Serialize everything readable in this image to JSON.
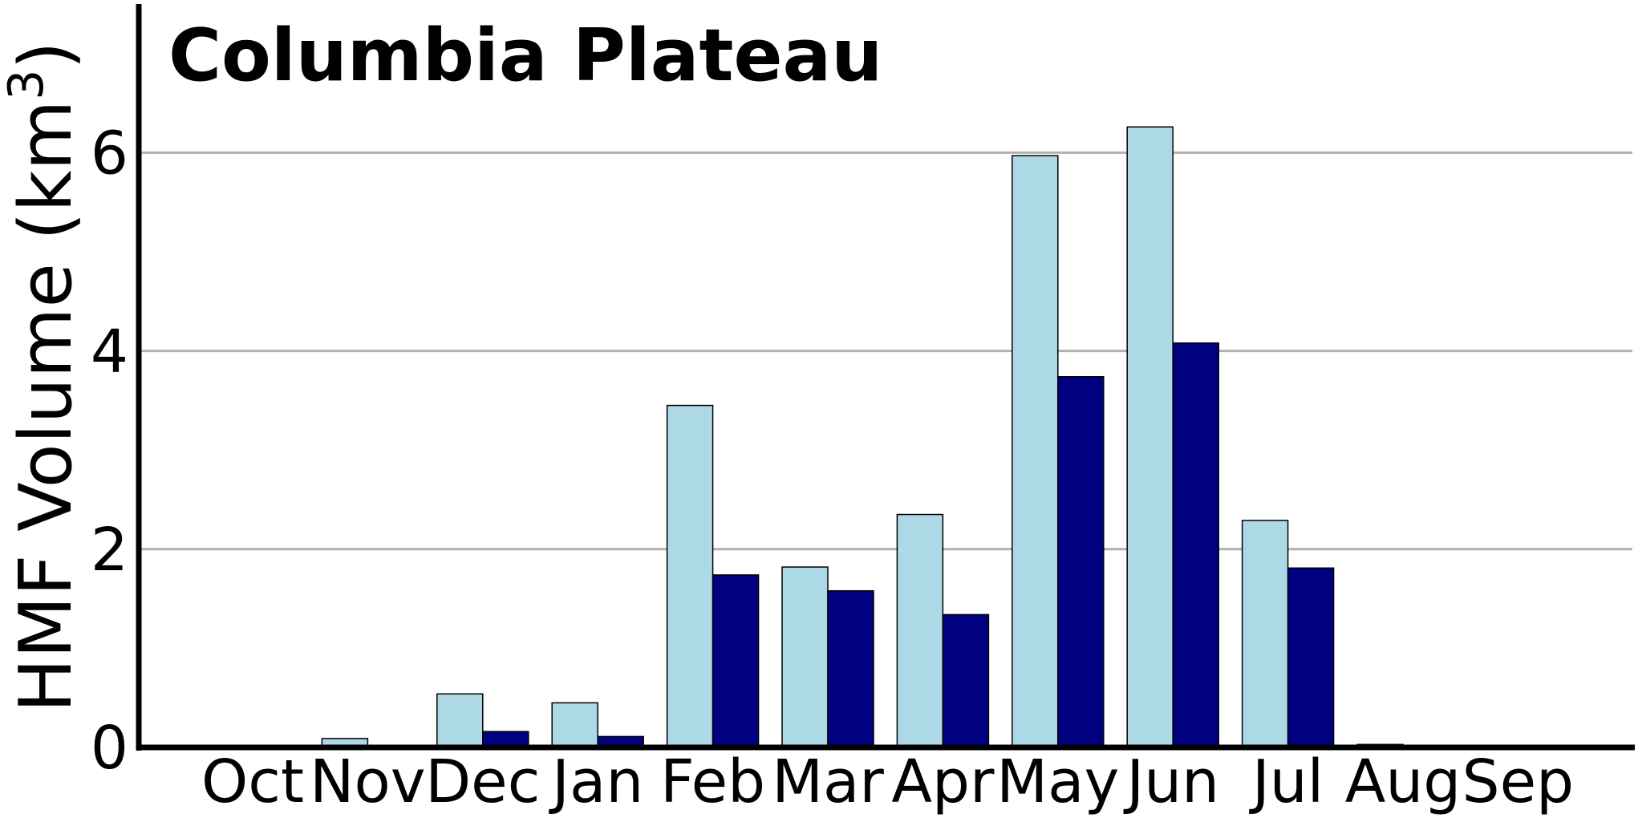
{
  "chart_data": {
    "type": "bar",
    "title": "Columbia Plateau",
    "xlabel": "",
    "ylabel": "HMF Volume (km",
    "ylabel_sup": "3",
    "ylabel_close": ")",
    "categories": [
      "Oct",
      "Nov",
      "Dec",
      "Jan",
      "Feb",
      "Mar",
      "Apr",
      "May",
      "Jun",
      "Jul",
      "Aug",
      "Sep"
    ],
    "series": [
      {
        "color": "#add8e6",
        "values": [
          0,
          0.09,
          0.54,
          0.45,
          3.45,
          1.82,
          2.35,
          5.97,
          6.26,
          2.29,
          0.03,
          0
        ]
      },
      {
        "color": "#000080",
        "values": [
          0,
          0,
          0.16,
          0.11,
          1.74,
          1.58,
          1.34,
          3.74,
          4.08,
          1.81,
          0,
          0
        ]
      }
    ],
    "ylim": [
      0,
      7.5
    ],
    "yticks": [
      0,
      2,
      4,
      6
    ],
    "grid": "horizontal",
    "grid_color": "#b0b0b0"
  }
}
